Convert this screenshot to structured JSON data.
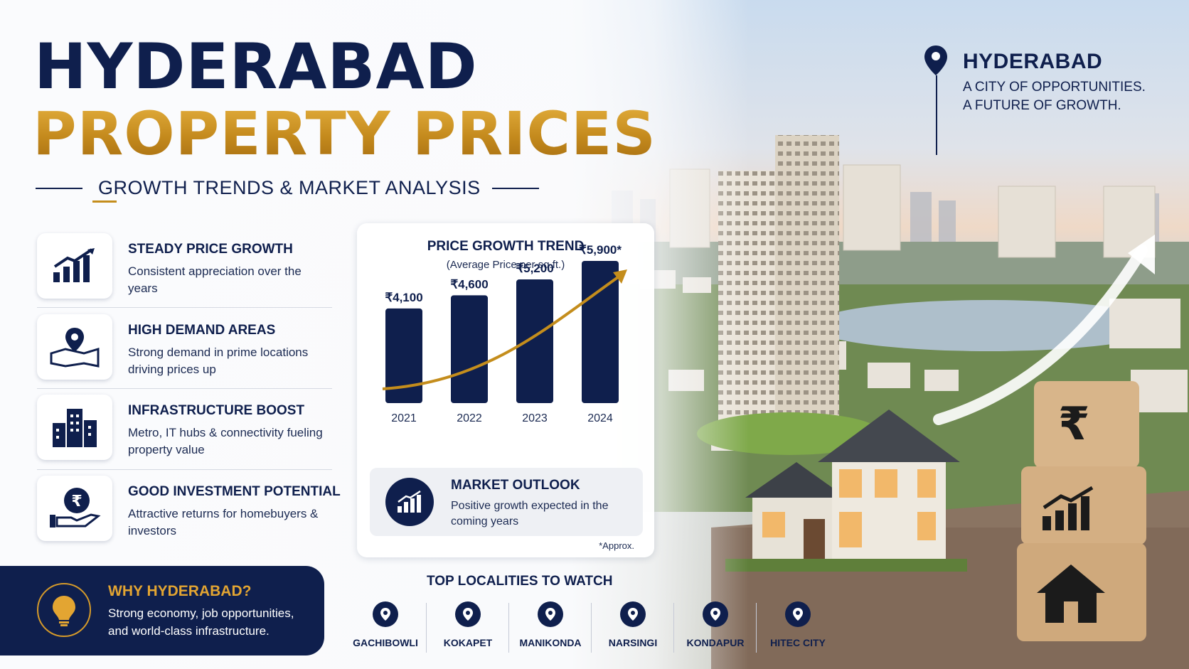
{
  "title": {
    "line1": "HYDERABAD",
    "line2": "PROPERTY PRICES",
    "subtitle": "GROWTH TRENDS & MARKET ANALYSIS"
  },
  "tagline": {
    "city": "HYDERABAD",
    "line1": "A CITY OF OPPORTUNITIES.",
    "line2": "A FUTURE OF GROWTH."
  },
  "features": [
    {
      "icon": "growth-chart-icon",
      "title": "STEADY PRICE GROWTH",
      "desc": "Consistent appreciation over the years"
    },
    {
      "icon": "map-pin-icon",
      "title": "HIGH DEMAND AREAS",
      "desc": "Strong demand in prime locations driving prices up"
    },
    {
      "icon": "buildings-icon",
      "title": "INFRASTRUCTURE BOOST",
      "desc": "Metro, IT hubs & connectivity fueling property value"
    },
    {
      "icon": "rupee-hand-icon",
      "title": "GOOD INVESTMENT POTENTIAL",
      "desc": "Attractive returns for homebuyers & investors"
    }
  ],
  "why": {
    "title": "WHY HYDERABAD?",
    "desc": "Strong economy, job opportunities, and world-class infrastructure."
  },
  "chart_data": {
    "type": "bar",
    "title": "PRICE GROWTH TREND",
    "subtitle": "(Average Price per sq.ft.)",
    "categories": [
      "2021",
      "2022",
      "2023",
      "2024"
    ],
    "values": [
      4100,
      4600,
      5200,
      5900
    ],
    "value_labels": [
      "₹4,100",
      "₹4,600",
      "₹5,200",
      "₹5,900*"
    ],
    "trend_arrow": true,
    "grid": false,
    "note": "*Approx.",
    "colors": {
      "bar": "#0f1f4d",
      "trend": "#c48d1c"
    }
  },
  "outlook": {
    "title": "MARKET OUTLOOK",
    "desc": "Positive growth expected in the coming years"
  },
  "localities": {
    "title": "TOP LOCALITIES TO WATCH",
    "items": [
      "GACHIBOWLI",
      "KOKAPET",
      "MANIKONDA",
      "NARSINGI",
      "KONDAPUR",
      "HITEC CITY"
    ]
  },
  "colors": {
    "navy": "#0f1f4d",
    "gold": "#c48d1c"
  }
}
